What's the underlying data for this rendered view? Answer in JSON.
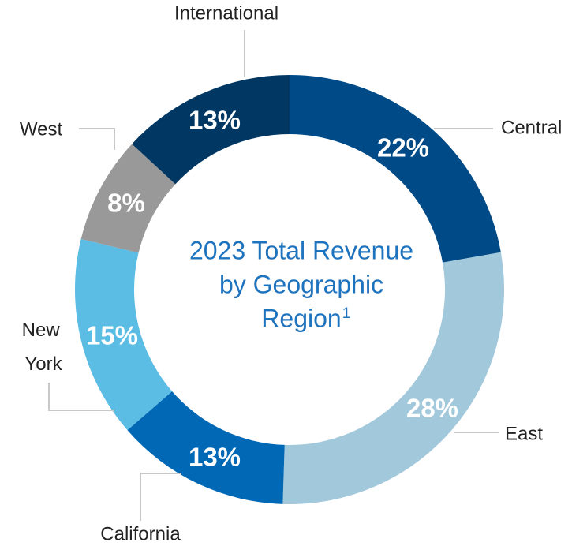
{
  "chart_data": {
    "type": "donut",
    "title_lines": [
      "2023 Total Revenue",
      "by Geographic",
      "Region"
    ],
    "title_footnote": "1",
    "categories": [
      "Central",
      "East",
      "California",
      "New York",
      "West",
      "International"
    ],
    "values": [
      22,
      28,
      13,
      15,
      8,
      13
    ],
    "value_labels": [
      "22%",
      "28%",
      "13%",
      "15%",
      "8%",
      "13%"
    ],
    "colors": [
      "#004b87",
      "#a2c8dc",
      "#0068b5",
      "#5bbce4",
      "#999999",
      "#003763"
    ]
  }
}
